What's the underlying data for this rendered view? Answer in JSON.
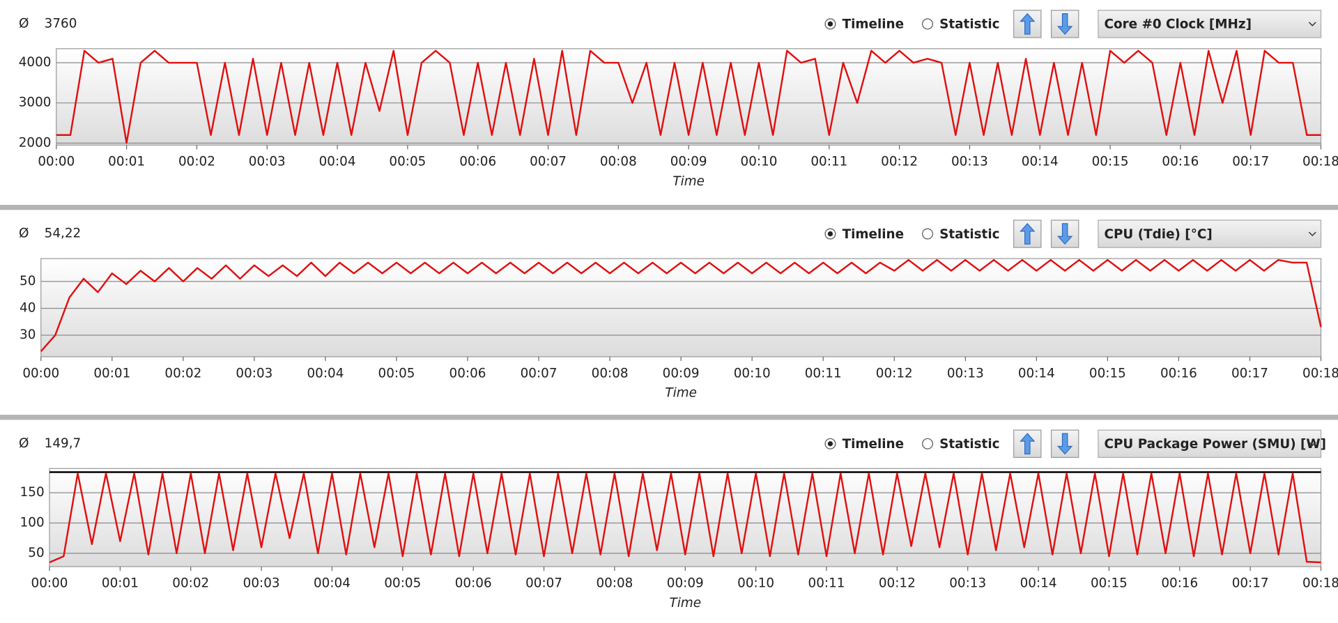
{
  "chart_data": [
    {
      "type": "line",
      "avg_symbol": "Ø",
      "average": 3760,
      "options": [
        "Timeline",
        "Statistic"
      ],
      "selected": 0,
      "sensor": "Core #0 Clock [MHz]",
      "x_label": "Time",
      "color": "#e01010",
      "xlim": [
        0,
        18
      ],
      "ylim": [
        1950,
        4350
      ],
      "yticks": [
        2000,
        3000,
        4000
      ],
      "xticks": [
        {
          "value": 0,
          "label": "00:00"
        },
        {
          "value": 1,
          "label": "00:01"
        },
        {
          "value": 2,
          "label": "00:02"
        },
        {
          "value": 3,
          "label": "00:03"
        },
        {
          "value": 4,
          "label": "00:04"
        },
        {
          "value": 5,
          "label": "00:05"
        },
        {
          "value": 6,
          "label": "00:06"
        },
        {
          "value": 7,
          "label": "00:07"
        },
        {
          "value": 8,
          "label": "00:08"
        },
        {
          "value": 9,
          "label": "00:09"
        },
        {
          "value": 10,
          "label": "00:10"
        },
        {
          "value": 11,
          "label": "00:11"
        },
        {
          "value": 12,
          "label": "00:12"
        },
        {
          "value": 13,
          "label": "00:13"
        },
        {
          "value": 14,
          "label": "00:14"
        },
        {
          "value": 15,
          "label": "00:15"
        },
        {
          "value": 16,
          "label": "00:16"
        },
        {
          "value": 17,
          "label": "00:17"
        },
        {
          "value": 18,
          "label": "00:18"
        }
      ],
      "x": [
        0,
        0.2,
        0.4,
        0.6,
        0.8,
        1,
        1.2,
        1.4,
        1.6,
        1.8,
        2,
        2.2,
        2.4,
        2.6,
        2.8,
        3,
        3.2,
        3.4,
        3.6,
        3.8,
        4,
        4.2,
        4.4,
        4.6,
        4.8,
        5,
        5.2,
        5.4,
        5.6,
        5.8,
        6,
        6.2,
        6.4,
        6.6,
        6.8,
        7,
        7.2,
        7.4,
        7.6,
        7.8,
        8,
        8.2,
        8.4,
        8.6,
        8.8,
        9,
        9.2,
        9.4,
        9.6,
        9.8,
        10,
        10.2,
        10.4,
        10.6,
        10.8,
        11,
        11.2,
        11.4,
        11.6,
        11.8,
        12,
        12.2,
        12.4,
        12.6,
        12.8,
        13,
        13.2,
        13.4,
        13.6,
        13.8,
        14,
        14.2,
        14.4,
        14.6,
        14.8,
        15,
        15.2,
        15.4,
        15.6,
        15.8,
        16,
        16.2,
        16.4,
        16.6,
        16.8,
        17,
        17.2,
        17.4,
        17.6,
        17.8,
        18
      ],
      "values": [
        2200,
        2200,
        4300,
        4000,
        4100,
        2000,
        4000,
        4300,
        4000,
        4000,
        4000,
        2200,
        4000,
        2200,
        4100,
        2200,
        4000,
        2200,
        4000,
        2200,
        4000,
        2200,
        4000,
        2800,
        4300,
        2200,
        4000,
        4300,
        4000,
        2200,
        4000,
        2200,
        4000,
        2200,
        4100,
        2200,
        4300,
        2200,
        4300,
        4000,
        4000,
        3000,
        4000,
        2200,
        4000,
        2200,
        4000,
        2200,
        4000,
        2200,
        4000,
        2200,
        4300,
        4000,
        4100,
        2200,
        4000,
        3000,
        4300,
        4000,
        4300,
        4000,
        4100,
        4000,
        2200,
        4000,
        2200,
        4000,
        2200,
        4100,
        2200,
        4000,
        2200,
        4000,
        2200,
        4300,
        4000,
        4300,
        4000,
        2200,
        4000,
        2200,
        4300,
        3000,
        4300,
        2200,
        4300,
        4000,
        4000,
        2200,
        2200
      ]
    },
    {
      "type": "line",
      "avg_symbol": "Ø",
      "average": {
        "value": 54.22,
        "label": "54,22"
      },
      "options": [
        "Timeline",
        "Statistic"
      ],
      "selected": 0,
      "sensor": "CPU (Tdie) [°C]",
      "x_label": "Time",
      "color": "#e01010",
      "xlim": [
        0,
        18
      ],
      "ylim": [
        22,
        58.5
      ],
      "yticks": [
        30,
        40,
        50
      ],
      "xticks": [
        {
          "value": 0,
          "label": "00:00"
        },
        {
          "value": 1,
          "label": "00:01"
        },
        {
          "value": 2,
          "label": "00:02"
        },
        {
          "value": 3,
          "label": "00:03"
        },
        {
          "value": 4,
          "label": "00:04"
        },
        {
          "value": 5,
          "label": "00:05"
        },
        {
          "value": 6,
          "label": "00:06"
        },
        {
          "value": 7,
          "label": "00:07"
        },
        {
          "value": 8,
          "label": "00:08"
        },
        {
          "value": 9,
          "label": "00:09"
        },
        {
          "value": 10,
          "label": "00:10"
        },
        {
          "value": 11,
          "label": "00:11"
        },
        {
          "value": 12,
          "label": "00:12"
        },
        {
          "value": 13,
          "label": "00:13"
        },
        {
          "value": 14,
          "label": "00:14"
        },
        {
          "value": 15,
          "label": "00:15"
        },
        {
          "value": 16,
          "label": "00:16"
        },
        {
          "value": 17,
          "label": "00:17"
        },
        {
          "value": 18,
          "label": "00:18"
        }
      ],
      "x": [
        0,
        0.2,
        0.4,
        0.6,
        0.8,
        1,
        1.2,
        1.4,
        1.6,
        1.8,
        2,
        2.2,
        2.4,
        2.6,
        2.8,
        3,
        3.2,
        3.4,
        3.6,
        3.8,
        4,
        4.2,
        4.4,
        4.6,
        4.8,
        5,
        5.2,
        5.4,
        5.6,
        5.8,
        6,
        6.2,
        6.4,
        6.6,
        6.8,
        7,
        7.2,
        7.4,
        7.6,
        7.8,
        8,
        8.2,
        8.4,
        8.6,
        8.8,
        9,
        9.2,
        9.4,
        9.6,
        9.8,
        10,
        10.2,
        10.4,
        10.6,
        10.8,
        11,
        11.2,
        11.4,
        11.6,
        11.8,
        12,
        12.2,
        12.4,
        12.6,
        12.8,
        13,
        13.2,
        13.4,
        13.6,
        13.8,
        14,
        14.2,
        14.4,
        14.6,
        14.8,
        15,
        15.2,
        15.4,
        15.6,
        15.8,
        16,
        16.2,
        16.4,
        16.6,
        16.8,
        17,
        17.2,
        17.4,
        17.6,
        17.8,
        18
      ],
      "values": [
        24,
        30,
        44,
        51,
        46,
        53,
        49,
        54,
        50,
        55,
        50,
        55,
        51,
        56,
        51,
        56,
        52,
        56,
        52,
        57,
        52,
        57,
        53,
        57,
        53,
        57,
        53,
        57,
        53,
        57,
        53,
        57,
        53,
        57,
        53,
        57,
        53,
        57,
        53,
        57,
        53,
        57,
        53,
        57,
        53,
        57,
        53,
        57,
        53,
        57,
        53,
        57,
        53,
        57,
        53,
        57,
        53,
        57,
        53,
        57,
        54,
        58,
        54,
        58,
        54,
        58,
        54,
        58,
        54,
        58,
        54,
        58,
        54,
        58,
        54,
        58,
        54,
        58,
        54,
        58,
        54,
        58,
        54,
        58,
        54,
        58,
        54,
        58,
        57,
        57,
        33
      ]
    },
    {
      "type": "line",
      "avg_symbol": "Ø",
      "average": {
        "value": 149.7,
        "label": "149,7"
      },
      "options": [
        "Timeline",
        "Statistic"
      ],
      "selected": 0,
      "sensor": "CPU Package Power (SMU) [W]",
      "x_label": "Time",
      "color": "#e01010",
      "max_line": 184,
      "max_line_color": "#000000",
      "xlim": [
        0,
        18
      ],
      "ylim": [
        28,
        190
      ],
      "yticks": [
        50,
        100,
        150
      ],
      "xticks": [
        {
          "value": 0,
          "label": "00:00"
        },
        {
          "value": 1,
          "label": "00:01"
        },
        {
          "value": 2,
          "label": "00:02"
        },
        {
          "value": 3,
          "label": "00:03"
        },
        {
          "value": 4,
          "label": "00:04"
        },
        {
          "value": 5,
          "label": "00:05"
        },
        {
          "value": 6,
          "label": "00:06"
        },
        {
          "value": 7,
          "label": "00:07"
        },
        {
          "value": 8,
          "label": "00:08"
        },
        {
          "value": 9,
          "label": "00:09"
        },
        {
          "value": 10,
          "label": "00:10"
        },
        {
          "value": 11,
          "label": "00:11"
        },
        {
          "value": 12,
          "label": "00:12"
        },
        {
          "value": 13,
          "label": "00:13"
        },
        {
          "value": 14,
          "label": "00:14"
        },
        {
          "value": 15,
          "label": "00:15"
        },
        {
          "value": 16,
          "label": "00:16"
        },
        {
          "value": 17,
          "label": "00:17"
        },
        {
          "value": 18,
          "label": "00:18"
        }
      ],
      "x": [
        0,
        0.2,
        0.4,
        0.6,
        0.8,
        1,
        1.2,
        1.4,
        1.6,
        1.8,
        2,
        2.2,
        2.4,
        2.6,
        2.8,
        3,
        3.2,
        3.4,
        3.6,
        3.8,
        4,
        4.2,
        4.4,
        4.6,
        4.8,
        5,
        5.2,
        5.4,
        5.6,
        5.8,
        6,
        6.2,
        6.4,
        6.6,
        6.8,
        7,
        7.2,
        7.4,
        7.6,
        7.8,
        8,
        8.2,
        8.4,
        8.6,
        8.8,
        9,
        9.2,
        9.4,
        9.6,
        9.8,
        10,
        10.2,
        10.4,
        10.6,
        10.8,
        11,
        11.2,
        11.4,
        11.6,
        11.8,
        12,
        12.2,
        12.4,
        12.6,
        12.8,
        13,
        13.2,
        13.4,
        13.6,
        13.8,
        14,
        14.2,
        14.4,
        14.6,
        14.8,
        15,
        15.2,
        15.4,
        15.6,
        15.8,
        16,
        16.2,
        16.4,
        16.6,
        16.8,
        17,
        17.2,
        17.4,
        17.6,
        17.8,
        18
      ],
      "values": [
        35,
        45,
        182,
        65,
        182,
        70,
        182,
        48,
        182,
        50,
        182,
        50,
        182,
        55,
        182,
        60,
        182,
        75,
        182,
        50,
        182,
        48,
        182,
        60,
        182,
        45,
        182,
        48,
        182,
        45,
        182,
        50,
        182,
        48,
        182,
        45,
        182,
        50,
        182,
        48,
        182,
        45,
        182,
        55,
        182,
        48,
        182,
        45,
        182,
        50,
        182,
        45,
        182,
        48,
        182,
        45,
        182,
        50,
        182,
        48,
        182,
        62,
        182,
        60,
        182,
        48,
        182,
        55,
        182,
        60,
        182,
        48,
        182,
        50,
        182,
        45,
        182,
        48,
        182,
        50,
        182,
        45,
        182,
        48,
        182,
        50,
        182,
        48,
        182,
        36,
        35
      ]
    }
  ]
}
